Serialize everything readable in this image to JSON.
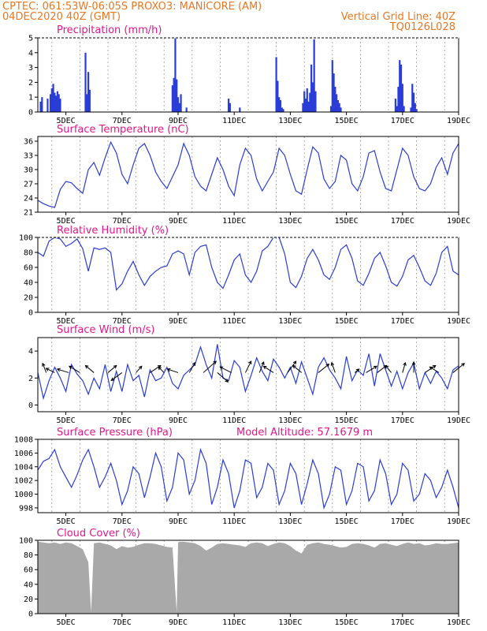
{
  "header": {
    "line1_left": "CPTEC:   061:53W-06:05S   PROXO3: MANICORE (AM)",
    "line2_left": "04DEC2020 40Z (GMT)",
    "line2_right": "Vertical Grid Line: 40Z",
    "line3_right": "TQ0126L028"
  },
  "colors": {
    "header": "#e87722",
    "panel_title": "#e0198a",
    "series": "#2a3dd6",
    "cloud": "#a9a9a9",
    "grid": "#999999"
  },
  "x_axis": {
    "start": "04DEC2020 08Z",
    "end": "19DEC2020 00Z",
    "tick_labels": [
      "5DEC",
      "7DEC",
      "9DEC",
      "11DEC",
      "13DEC",
      "15DEC",
      "17DEC",
      "19DEC"
    ],
    "tick_days": [
      1,
      3,
      5,
      7,
      9,
      11,
      13,
      15
    ],
    "gridline_days": [
      0.5,
      1.5,
      2.5,
      3.5,
      4.5,
      5.5,
      6.5,
      7.5,
      8.5,
      9.5,
      10.5,
      11.5,
      12.5,
      13.5,
      14.5
    ]
  },
  "chart_data": [
    {
      "type": "bar",
      "title": "Precipitation (mm/h)",
      "ylim": [
        0,
        5
      ],
      "yticks": [
        0,
        1,
        2,
        3,
        4,
        5
      ],
      "x": [
        0.1,
        0.15,
        0.35,
        0.45,
        0.5,
        0.55,
        0.6,
        0.65,
        0.7,
        0.75,
        0.8,
        1.7,
        1.75,
        1.8,
        1.85,
        4.8,
        4.85,
        4.9,
        4.95,
        5.0,
        5.05,
        5.1,
        5.3,
        6.8,
        6.85,
        7.2,
        8.5,
        8.55,
        8.6,
        8.65,
        8.7,
        8.75,
        9.45,
        9.5,
        9.55,
        9.6,
        9.65,
        9.7,
        9.75,
        9.8,
        9.85,
        9.9,
        10.45,
        10.5,
        10.55,
        10.6,
        10.65,
        10.7,
        10.75,
        10.8,
        12.75,
        12.8,
        12.85,
        12.9,
        12.95,
        13.0,
        13.05,
        13.3,
        13.35,
        13.4,
        13.45,
        13.5
      ],
      "values": [
        0.7,
        1.0,
        0.9,
        1.2,
        1.6,
        1.9,
        1.3,
        1.1,
        1.4,
        1.2,
        0.9,
        4.0,
        1.2,
        2.7,
        1.5,
        1.8,
        2.3,
        5.0,
        2.2,
        1.0,
        0.6,
        1.2,
        0.3,
        0.9,
        0.6,
        0.3,
        3.7,
        2.1,
        1.0,
        0.8,
        0.3,
        0.2,
        0.6,
        1.4,
        0.9,
        1.6,
        0.7,
        1.3,
        3.2,
        2.0,
        4.9,
        1.4,
        0.4,
        3.5,
        2.6,
        1.7,
        1.2,
        0.8,
        0.6,
        0.3,
        0.9,
        0.4,
        1.7,
        3.5,
        3.2,
        1.9,
        0.4,
        0.3,
        1.9,
        1.3,
        0.6,
        0.2
      ]
    },
    {
      "type": "line",
      "title": "Surface Temperature (nC)",
      "ylim": [
        21,
        37
      ],
      "yticks": [
        21,
        24,
        27,
        30,
        33,
        36
      ],
      "x": [
        0,
        0.2,
        0.4,
        0.6,
        0.8,
        1.0,
        1.2,
        1.4,
        1.6,
        1.8,
        2.0,
        2.2,
        2.4,
        2.6,
        2.8,
        3.0,
        3.2,
        3.4,
        3.6,
        3.8,
        4.0,
        4.2,
        4.4,
        4.6,
        4.8,
        5.0,
        5.2,
        5.4,
        5.6,
        5.8,
        6.0,
        6.2,
        6.4,
        6.6,
        6.8,
        7.0,
        7.2,
        7.4,
        7.6,
        7.8,
        8.0,
        8.2,
        8.4,
        8.6,
        8.8,
        9.0,
        9.2,
        9.4,
        9.6,
        9.8,
        10.0,
        10.2,
        10.4,
        10.6,
        10.8,
        11.0,
        11.2,
        11.4,
        11.6,
        11.8,
        12.0,
        12.2,
        12.4,
        12.6,
        12.8,
        13.0,
        13.2,
        13.4,
        13.6,
        13.8,
        14.0,
        14.2,
        14.4,
        14.6,
        14.8,
        15.0
      ],
      "values": [
        23.5,
        22.8,
        22.3,
        22.0,
        25.8,
        27.5,
        27.2,
        26.0,
        25.0,
        30.0,
        31.5,
        28.8,
        32.5,
        35.8,
        33.5,
        29.0,
        27.0,
        31.0,
        34.5,
        35.5,
        33.0,
        29.5,
        27.5,
        26.0,
        28.5,
        31.0,
        35.5,
        33.0,
        28.5,
        26.5,
        25.5,
        29.0,
        32.5,
        30.0,
        26.5,
        24.5,
        31.0,
        34.5,
        33.0,
        28.0,
        25.5,
        27.5,
        29.5,
        34.5,
        33.0,
        29.0,
        25.5,
        24.8,
        30.0,
        34.8,
        33.5,
        28.0,
        26.0,
        27.5,
        33.0,
        32.0,
        27.0,
        25.5,
        28.5,
        33.5,
        34.0,
        29.5,
        26.0,
        25.5,
        30.0,
        34.5,
        33.0,
        28.5,
        26.0,
        25.5,
        27.0,
        30.5,
        32.5,
        29.0,
        33.5,
        35.5
      ]
    },
    {
      "type": "line",
      "title": "Relative Humidity (%)",
      "ylim": [
        0,
        100
      ],
      "yticks": [
        0,
        20,
        40,
        60,
        80,
        100
      ],
      "x": [
        0,
        0.2,
        0.4,
        0.6,
        0.8,
        1.0,
        1.2,
        1.4,
        1.6,
        1.8,
        2.0,
        2.2,
        2.4,
        2.6,
        2.8,
        3.0,
        3.2,
        3.4,
        3.6,
        3.8,
        4.0,
        4.2,
        4.4,
        4.6,
        4.8,
        5.0,
        5.2,
        5.4,
        5.6,
        5.8,
        6.0,
        6.2,
        6.4,
        6.6,
        6.8,
        7.0,
        7.2,
        7.4,
        7.6,
        7.8,
        8.0,
        8.2,
        8.4,
        8.6,
        8.8,
        9.0,
        9.2,
        9.4,
        9.6,
        9.8,
        10.0,
        10.2,
        10.4,
        10.6,
        10.8,
        11.0,
        11.2,
        11.4,
        11.6,
        11.8,
        12.0,
        12.2,
        12.4,
        12.6,
        12.8,
        13.0,
        13.2,
        13.4,
        13.6,
        13.8,
        14.0,
        14.2,
        14.4,
        14.6,
        14.8,
        15.0
      ],
      "values": [
        80,
        75,
        95,
        100,
        98,
        88,
        92,
        98,
        85,
        55,
        86,
        84,
        86,
        80,
        30,
        38,
        55,
        68,
        50,
        36,
        48,
        55,
        60,
        62,
        78,
        82,
        78,
        50,
        80,
        88,
        90,
        60,
        40,
        32,
        50,
        70,
        78,
        50,
        40,
        55,
        82,
        88,
        100,
        100,
        78,
        40,
        33,
        48,
        72,
        84,
        70,
        50,
        44,
        60,
        84,
        90,
        72,
        42,
        36,
        52,
        72,
        80,
        62,
        40,
        35,
        48,
        70,
        76,
        60,
        42,
        36,
        52,
        80,
        88,
        55,
        50
      ]
    },
    {
      "type": "line",
      "title": "Surface Wind (m/s)",
      "ylim": [
        -0.5,
        5
      ],
      "yticks": [
        0,
        2,
        4
      ],
      "x": [
        0,
        0.2,
        0.4,
        0.6,
        0.8,
        1.0,
        1.2,
        1.4,
        1.6,
        1.8,
        2.0,
        2.2,
        2.4,
        2.6,
        2.8,
        3.0,
        3.2,
        3.4,
        3.6,
        3.8,
        4.0,
        4.2,
        4.4,
        4.6,
        4.8,
        5.0,
        5.2,
        5.4,
        5.6,
        5.8,
        6.0,
        6.2,
        6.4,
        6.6,
        6.8,
        7.0,
        7.2,
        7.4,
        7.6,
        7.8,
        8.0,
        8.2,
        8.4,
        8.6,
        8.8,
        9.0,
        9.2,
        9.4,
        9.6,
        9.8,
        10.0,
        10.2,
        10.4,
        10.6,
        10.8,
        11.0,
        11.2,
        11.4,
        11.6,
        11.8,
        12.0,
        12.2,
        12.4,
        12.6,
        12.8,
        13.0,
        13.2,
        13.4,
        13.6,
        13.8,
        14.0,
        14.2,
        14.4,
        14.6,
        14.8,
        15.0
      ],
      "values": [
        2.4,
        0.5,
        1.8,
        2.8,
        2.0,
        1.0,
        3.0,
        2.3,
        1.8,
        0.8,
        2.0,
        1.2,
        3.0,
        1.0,
        2.5,
        1.0,
        3.0,
        1.8,
        2.2,
        0.6,
        2.6,
        1.8,
        2.0,
        2.8,
        1.6,
        1.2,
        2.2,
        2.6,
        3.0,
        4.3,
        3.0,
        2.0,
        4.5,
        2.0,
        1.8,
        3.3,
        2.8,
        1.0,
        2.2,
        3.5,
        2.5,
        1.8,
        3.4,
        2.8,
        2.0,
        2.8,
        1.6,
        3.2,
        2.0,
        0.8,
        2.8,
        3.5,
        2.6,
        2.0,
        1.2,
        3.6,
        1.8,
        2.6,
        2.2,
        3.8,
        1.4,
        3.8,
        2.6,
        1.4,
        2.5,
        1.2,
        2.4,
        3.1,
        1.2,
        2.4,
        1.6,
        2.5,
        2.0,
        1.2,
        2.6,
        2.9
      ],
      "arrows": {
        "x": [
          0.3,
          0.6,
          1.1,
          1.5,
          2.0,
          2.5,
          3.0,
          3.5,
          4.0,
          4.5,
          5.0,
          5.4,
          5.9,
          6.4,
          6.9,
          7.4,
          7.9,
          8.4,
          8.9,
          9.4,
          10.0,
          10.6,
          11.3,
          11.7,
          12.1,
          12.6,
          13.0,
          13.4,
          13.8,
          14.3,
          14.8
        ],
        "u": [
          -0.5,
          -1.2,
          -1.6,
          -1.5,
          -1.2,
          1.2,
          -1.5,
          0.8,
          1.5,
          -0.8,
          -1.5,
          0.8,
          1.8,
          1.5,
          -1.6,
          0.8,
          0.6,
          -1.4,
          1.2,
          -1.2,
          1.5,
          -0.5,
          0.6,
          1.5,
          1.3,
          -0.8,
          0.4,
          0.0,
          1.5,
          -1.3,
          1.6
        ],
        "v": [
          1.3,
          0.6,
          0.5,
          0.9,
          1.0,
          1.0,
          -1.1,
          0.9,
          1.0,
          0.8,
          0.5,
          1.4,
          1.6,
          -1.3,
          0.8,
          1.6,
          1.5,
          0.9,
          1.6,
          1.0,
          1.2,
          1.4,
          0.5,
          0.9,
          1.0,
          1.0,
          1.4,
          1.5,
          1.0,
          0.8,
          1.3
        ]
      }
    },
    {
      "type": "line",
      "title": "Surface Pressure (hPa)",
      "annotation": "Model Altitude: 57.1679 m",
      "ylim": [
        997.3,
        1008
      ],
      "yticks": [
        998,
        1000,
        1002,
        1004,
        1006,
        1008
      ],
      "x": [
        0,
        0.2,
        0.4,
        0.6,
        0.8,
        1.0,
        1.2,
        1.4,
        1.6,
        1.8,
        2.0,
        2.2,
        2.4,
        2.6,
        2.8,
        3.0,
        3.2,
        3.4,
        3.6,
        3.8,
        4.0,
        4.2,
        4.4,
        4.6,
        4.8,
        5.0,
        5.2,
        5.4,
        5.6,
        5.8,
        6.0,
        6.2,
        6.4,
        6.6,
        6.8,
        7.0,
        7.2,
        7.4,
        7.6,
        7.8,
        8.0,
        8.2,
        8.4,
        8.6,
        8.8,
        9.0,
        9.2,
        9.4,
        9.6,
        9.8,
        10.0,
        10.2,
        10.4,
        10.6,
        10.8,
        11.0,
        11.2,
        11.4,
        11.6,
        11.8,
        12.0,
        12.2,
        12.4,
        12.6,
        12.8,
        13.0,
        13.2,
        13.4,
        13.6,
        13.8,
        14.0,
        14.2,
        14.4,
        14.6,
        14.8,
        15.0
      ],
      "values": [
        1003.5,
        1004.8,
        1005.2,
        1006.5,
        1004.0,
        1002.5,
        1001.0,
        1002.8,
        1005.0,
        1006.5,
        1004.0,
        1001.0,
        1002.5,
        1004.5,
        1002.0,
        998.5,
        1000.5,
        1004.0,
        1003.0,
        999.5,
        1002.5,
        1006.0,
        1004.0,
        999.0,
        1001.0,
        1006.0,
        1005.0,
        1000.0,
        1002.0,
        1006.5,
        1004.5,
        998.5,
        1001.0,
        1005.0,
        1003.0,
        998.0,
        1000.5,
        1005.0,
        1004.5,
        999.5,
        1001.0,
        1004.5,
        1003.5,
        998.5,
        1000.5,
        1004.5,
        1003.0,
        998.5,
        1001.5,
        1005.0,
        1003.0,
        998.0,
        1000.0,
        1004.0,
        1003.5,
        998.5,
        1000.5,
        1004.5,
        1004.0,
        999.0,
        1000.5,
        1005.0,
        1003.0,
        998.5,
        1000.0,
        1004.5,
        1003.5,
        999.0,
        1000.0,
        1003.0,
        1002.0,
        999.5,
        1001.0,
        1003.5,
        1001.0,
        998.0
      ]
    },
    {
      "type": "area",
      "title": "Cloud Cover (%)",
      "ylim": [
        0,
        100
      ],
      "yticks": [
        0,
        20,
        40,
        60,
        80,
        100
      ],
      "x": [
        0,
        0.2,
        0.4,
        0.6,
        0.8,
        1.0,
        1.2,
        1.4,
        1.6,
        1.8,
        1.9,
        2.0,
        2.2,
        2.4,
        2.6,
        2.8,
        3.0,
        3.2,
        3.4,
        3.6,
        3.8,
        4.0,
        4.2,
        4.4,
        4.6,
        4.8,
        4.95,
        5.0,
        5.05,
        5.2,
        5.4,
        5.6,
        5.8,
        6.0,
        6.2,
        6.4,
        6.6,
        6.8,
        7.0,
        7.2,
        7.4,
        7.6,
        7.8,
        8.0,
        8.2,
        8.4,
        8.6,
        8.8,
        9.0,
        9.2,
        9.4,
        9.6,
        9.8,
        10.0,
        10.2,
        10.4,
        10.6,
        10.8,
        11.0,
        11.2,
        11.4,
        11.6,
        11.8,
        12.0,
        12.2,
        12.4,
        12.6,
        12.8,
        13.0,
        13.2,
        13.4,
        13.6,
        13.8,
        14.0,
        14.2,
        14.4,
        14.6,
        14.8,
        15.0
      ],
      "values": [
        98,
        97,
        96,
        97,
        95,
        97,
        96,
        92,
        88,
        70,
        2,
        96,
        97,
        95,
        93,
        88,
        92,
        90,
        91,
        94,
        96,
        96,
        95,
        93,
        91,
        90,
        2,
        97,
        98,
        98,
        97,
        96,
        92,
        86,
        90,
        95,
        96,
        95,
        94,
        93,
        91,
        96,
        97,
        96,
        92,
        95,
        97,
        96,
        92,
        86,
        82,
        94,
        96,
        97,
        95,
        94,
        92,
        90,
        91,
        95,
        96,
        95,
        93,
        90,
        95,
        96,
        94,
        92,
        95,
        97,
        95,
        96,
        93,
        94,
        96,
        95,
        95,
        96,
        97
      ]
    }
  ]
}
